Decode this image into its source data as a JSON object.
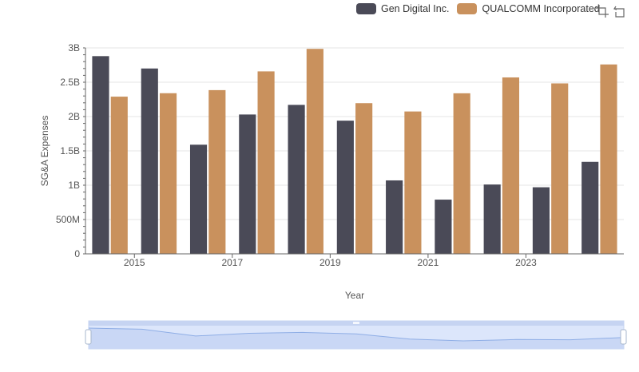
{
  "colors": {
    "series_0": "#4a4a57",
    "series_1": "#c9915d",
    "grid": "#e4e4e4",
    "axis_text": "#555555",
    "zoom_fill": "#dce6fb",
    "zoom_border": "#c6d4f2",
    "zoom_line": "#8faee6"
  },
  "toolbar": {
    "zoom_icon": "zoom-select-icon",
    "restore_icon": "restore-icon"
  },
  "chart_data": {
    "type": "bar",
    "xlabel": "Year",
    "ylabel": "SG&A Expenses",
    "ylim": [
      0,
      3000000000
    ],
    "yticks": [
      {
        "value": 0,
        "label": "0"
      },
      {
        "value": 500000000,
        "label": "500M"
      },
      {
        "value": 1000000000,
        "label": "1B"
      },
      {
        "value": 1500000000,
        "label": "1.5B"
      },
      {
        "value": 2000000000,
        "label": "2B"
      },
      {
        "value": 2500000000,
        "label": "2.5B"
      },
      {
        "value": 3000000000,
        "label": "3B"
      }
    ],
    "categories": [
      "2014",
      "2015",
      "2016",
      "2017",
      "2018",
      "2019",
      "2020",
      "2021",
      "2022",
      "2023",
      "2024"
    ],
    "xtick_labels": [
      "2015",
      "2017",
      "2019",
      "2021",
      "2023"
    ],
    "grid": true,
    "legend_position": "top-right",
    "series": [
      {
        "name": "Gen Digital Inc.",
        "values": [
          2880000000,
          2700000000,
          1590000000,
          2030000000,
          2170000000,
          1940000000,
          1070000000,
          790000000,
          1010000000,
          970000000,
          1340000000
        ]
      },
      {
        "name": "QUALCOMM Incorporated",
        "values": [
          2290000000,
          2340000000,
          2385000000,
          2658000000,
          2986000000,
          2195000000,
          2074000000,
          2339000000,
          2570000000,
          2483000000,
          2759000000
        ]
      }
    ]
  }
}
